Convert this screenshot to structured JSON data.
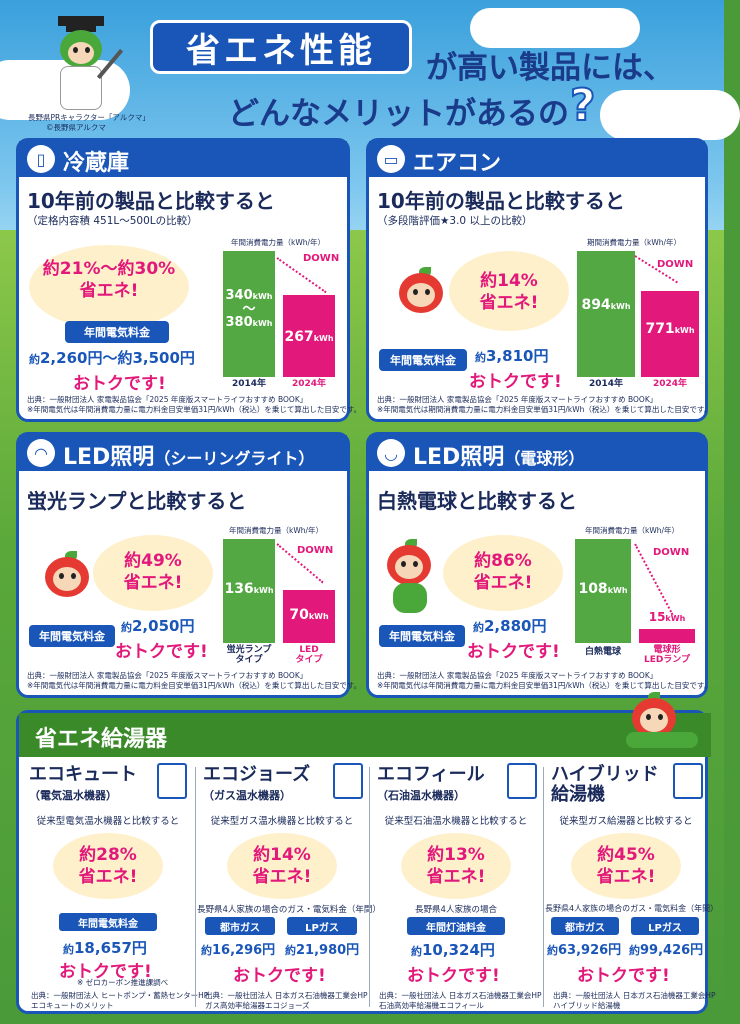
{
  "header": {
    "title": "省エネ性能",
    "title_rest_1": "が高い製品には、",
    "title_rest_2": "どんなメリットがあるの",
    "question_mark": "?",
    "credit_1": "長野県PRキャラクター「アルクマ」",
    "credit_2": "©長野県アルクマ"
  },
  "cards": {
    "fridge": {
      "label": "冷蔵庫",
      "compare": "10年前の製品と比較すると",
      "condition": "（定格内容積 451L〜500Lの比較）",
      "saving_1": "約21%〜約30%",
      "saving_2": "省エネ!",
      "pill": "年間電気料金",
      "price_pre": "約",
      "price": "2,260円〜約3,500円",
      "otoku": "おトクです!",
      "source_1": "出典：一般財団法人 家電製品協会「2025 年度版スマートライフおすすめ BOOK」",
      "source_2": "※年間電気代は年間消費電力量に電力料金目安単価31円/kWh（税込）を乗じて算出した目安です。",
      "chart_title": "年間消費電力量（kWh/年）",
      "down": "DOWN",
      "old_value_1": "340",
      "old_value_tilde": "〜",
      "old_value_2": "380",
      "unit": "kWh",
      "new_value": "267",
      "old_label": "2014年",
      "new_label": "2024年"
    },
    "aircon": {
      "label": "エアコン",
      "compare": "10年前の製品と比較すると",
      "condition": "（多段階評価★3.0 以上の比較）",
      "saving_1": "約14%",
      "saving_2": "省エネ!",
      "pill": "年間電気料金",
      "price_pre": "約",
      "price": "3,810円",
      "otoku": "おトクです!",
      "source_1": "出典：一般財団法人 家電製品協会「2025 年度版スマートライフおすすめ BOOK」",
      "source_2": "※年間電気代は期間消費電力量に電力料金目安単価31円/kWh（税込）を乗じて算出した目安です。",
      "chart_title": "期間消費電力量（kWh/年）",
      "down": "DOWN",
      "old_value": "894",
      "unit": "kWh",
      "new_value": "771",
      "old_label": "2014年",
      "new_label": "2024年"
    },
    "led_ceiling": {
      "label": "LED照明",
      "label_sub": "（シーリングライト）",
      "compare": "蛍光ランプと比較すると",
      "saving_1": "約49%",
      "saving_2": "省エネ!",
      "pill": "年間電気料金",
      "price_pre": "約",
      "price": "2,050円",
      "otoku": "おトクです!",
      "source_1": "出典：一般財団法人 家電製品協会「2025 年度版スマートライフおすすめ BOOK」",
      "source_2": "※年間電気代は年間消費電力量に電力料金目安単価31円/kWh（税込）を乗じて算出した目安です。",
      "chart_title": "年間消費電力量（kWh/年）",
      "down": "DOWN",
      "old_value": "136",
      "unit": "kWh",
      "new_value": "70",
      "old_label_1": "蛍光ランプ",
      "old_label_2": "タイプ",
      "new_label_1": "LED",
      "new_label_2": "タイプ"
    },
    "led_bulb": {
      "label": "LED照明",
      "label_sub": "（電球形）",
      "compare": "白熱電球と比較すると",
      "saving_1": "約86%",
      "saving_2": "省エネ!",
      "pill": "年間電気料金",
      "price_pre": "約",
      "price": "2,880円",
      "otoku": "おトクです!",
      "source_1": "出典：一般財団法人 家電製品協会「2025 年度版スマートライフおすすめ BOOK」",
      "source_2": "※年間電気代は年間消費電力量に電力料金目安単価31円/kWh（税込）を乗じて算出した目安です。",
      "chart_title": "年間消費電力量（kWh/年）",
      "down": "DOWN",
      "old_value": "108",
      "unit": "kWh",
      "new_value": "15",
      "old_label": "白熱電球",
      "new_label_1": "電球形",
      "new_label_2": "LEDランプ"
    }
  },
  "water_heater": {
    "title": "省エネ給湯器",
    "columns": [
      {
        "name": "エコキュート",
        "sub": "（電気温水機器）",
        "compare": "従来型電気温水機器と比較すると",
        "saving_1": "約28%",
        "saving_2": "省エネ!",
        "pill": "年間電気料金",
        "price_pre": "約",
        "price": "18,657円",
        "otoku": "おトクです!",
        "note": "※ ゼロカーボン推進課調べ",
        "source_1": "出典：一般財団法人 ヒートポンプ・蓄熱センターHP",
        "source_2": "エコキュートのメリット"
      },
      {
        "name": "エコジョーズ",
        "sub": "（ガス温水機器）",
        "compare": "従来型ガス温水機器と比較すると",
        "saving_1": "約14%",
        "saving_2": "省エネ!",
        "case": "長野県4人家族の場合のガス・電気料金（年間）",
        "pill_a": "都市ガス",
        "pill_b": "LPガス",
        "price_pre_a": "約",
        "price_a": "16,296円",
        "price_pre_b": "約",
        "price_b": "21,980円",
        "otoku": "おトクです!",
        "source_1": "出典：一般社団法人 日本ガス石油機器工業会HP",
        "source_2": "ガス高効率給湯器エコジョーズ"
      },
      {
        "name": "エコフィール",
        "sub": "（石油温水機器）",
        "compare": "従来型石油温水機器と比較すると",
        "saving_1": "約13%",
        "saving_2": "省エネ!",
        "case": "長野県4人家族の場合",
        "pill": "年間灯油料金",
        "price_pre": "約",
        "price": "10,324円",
        "otoku": "おトクです!",
        "source_1": "出典：一般社団法人 日本ガス石油機器工業会HP",
        "source_2": "石油高効率給湯機エコフィール"
      },
      {
        "name": "ハイブリッド",
        "name_2": "給湯機",
        "compare": "従来型ガス給湯器と比較すると",
        "saving_1": "約45%",
        "saving_2": "省エネ!",
        "case": "長野県4人家族の場合のガス・電気料金（年間）",
        "pill_a": "都市ガス",
        "pill_b": "LPガス",
        "price_pre_a": "約",
        "price_a": "63,926円",
        "price_pre_b": "約",
        "price_b": "99,426円",
        "otoku": "おトクです!",
        "source_1": "出典：一般社団法人 日本ガス石油機器工業会HP",
        "source_2": "ハイブリッド給湯機"
      }
    ]
  },
  "colors": {
    "navy": "#1a56b8",
    "pink": "#e2187a",
    "green": "#54a844",
    "cream": "#fff0cc"
  },
  "chart_data": [
    {
      "type": "bar",
      "categories": [
        "2014年",
        "2024年"
      ],
      "values": [
        380,
        267
      ],
      "old_range": [
        340,
        380
      ],
      "title": "年間消費電力量（kWh/年）",
      "annotations": [
        "DOWN"
      ]
    },
    {
      "type": "bar",
      "categories": [
        "2014年",
        "2024年"
      ],
      "values": [
        894,
        771
      ],
      "title": "期間消費電力量（kWh/年）",
      "annotations": [
        "DOWN"
      ]
    },
    {
      "type": "bar",
      "categories": [
        "蛍光ランプタイプ",
        "LEDタイプ"
      ],
      "values": [
        136,
        70
      ],
      "title": "年間消費電力量（kWh/年）",
      "annotations": [
        "DOWN"
      ]
    },
    {
      "type": "bar",
      "categories": [
        "白熱電球",
        "電球形LEDランプ"
      ],
      "values": [
        108,
        15
      ],
      "title": "年間消費電力量（kWh/年）",
      "annotations": [
        "DOWN"
      ]
    }
  ]
}
